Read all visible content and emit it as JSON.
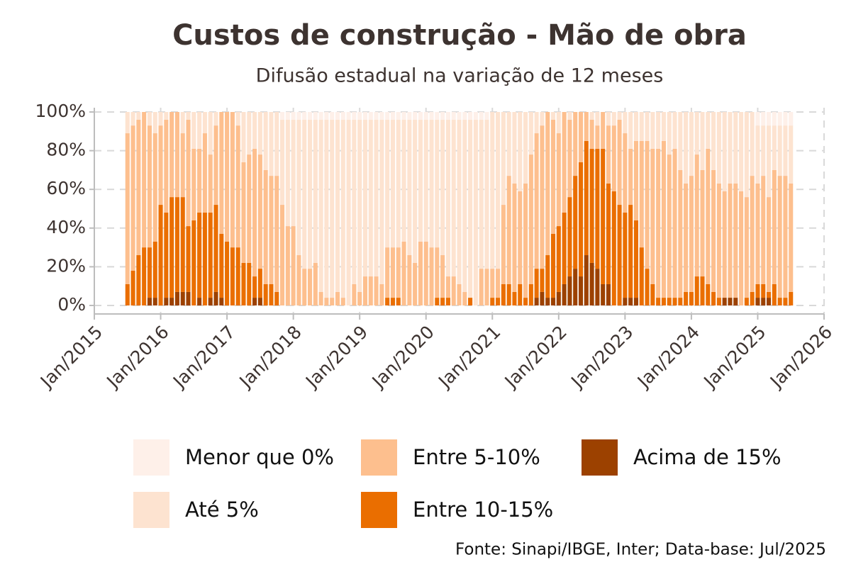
{
  "chart_data": {
    "type": "stacked-bar",
    "title": "Custos de construção - Mão de obra",
    "subtitle": "Difusão estadual na variação de 12 meses",
    "source": "Fonte: Sinapi/IBGE, Inter; Data-base: Jul/2025",
    "legend": "bottom",
    "grid": true,
    "xlim": [
      "2015-01",
      "2026-01"
    ],
    "xticks": [
      {
        "value": "2015-01",
        "label": "Jan/2015"
      },
      {
        "value": "2016-01",
        "label": "Jan/2016"
      },
      {
        "value": "2017-01",
        "label": "Jan/2017"
      },
      {
        "value": "2018-01",
        "label": "Jan/2018"
      },
      {
        "value": "2019-01",
        "label": "Jan/2019"
      },
      {
        "value": "2020-01",
        "label": "Jan/2020"
      },
      {
        "value": "2021-01",
        "label": "Jan/2021"
      },
      {
        "value": "2022-01",
        "label": "Jan/2022"
      },
      {
        "value": "2023-01",
        "label": "Jan/2023"
      },
      {
        "value": "2024-01",
        "label": "Jan/2024"
      },
      {
        "value": "2025-01",
        "label": "Jan/2025"
      },
      {
        "value": "2026-01",
        "label": "Jan/2026"
      }
    ],
    "ylim": [
      0,
      100
    ],
    "yticks": [
      {
        "value": 0,
        "label": "0%"
      },
      {
        "value": 20,
        "label": "20%"
      },
      {
        "value": 40,
        "label": "40%"
      },
      {
        "value": 60,
        "label": "60%"
      },
      {
        "value": 80,
        "label": "80%"
      },
      {
        "value": 100,
        "label": "100%"
      }
    ],
    "x": [
      "2015-07",
      "2015-08",
      "2015-09",
      "2015-10",
      "2015-11",
      "2015-12",
      "2016-01",
      "2016-02",
      "2016-03",
      "2016-04",
      "2016-05",
      "2016-06",
      "2016-07",
      "2016-08",
      "2016-09",
      "2016-10",
      "2016-11",
      "2016-12",
      "2017-01",
      "2017-02",
      "2017-03",
      "2017-04",
      "2017-05",
      "2017-06",
      "2017-07",
      "2017-08",
      "2017-09",
      "2017-10",
      "2017-11",
      "2017-12",
      "2018-01",
      "2018-02",
      "2018-03",
      "2018-04",
      "2018-05",
      "2018-06",
      "2018-07",
      "2018-08",
      "2018-09",
      "2018-10",
      "2018-11",
      "2018-12",
      "2019-01",
      "2019-02",
      "2019-03",
      "2019-04",
      "2019-05",
      "2019-06",
      "2019-07",
      "2019-08",
      "2019-09",
      "2019-10",
      "2019-11",
      "2019-12",
      "2020-01",
      "2020-02",
      "2020-03",
      "2020-04",
      "2020-05",
      "2020-06",
      "2020-07",
      "2020-08",
      "2020-09",
      "2020-10",
      "2020-11",
      "2020-12",
      "2021-01",
      "2021-02",
      "2021-03",
      "2021-04",
      "2021-05",
      "2021-06",
      "2021-07",
      "2021-08",
      "2021-09",
      "2021-10",
      "2021-11",
      "2021-12",
      "2022-01",
      "2022-02",
      "2022-03",
      "2022-04",
      "2022-05",
      "2022-06",
      "2022-07",
      "2022-08",
      "2022-09",
      "2022-10",
      "2022-11",
      "2022-12",
      "2023-01",
      "2023-02",
      "2023-03",
      "2023-04",
      "2023-05",
      "2023-06",
      "2023-07",
      "2023-08",
      "2023-09",
      "2023-10",
      "2023-11",
      "2023-12",
      "2024-01",
      "2024-02",
      "2024-03",
      "2024-04",
      "2024-05",
      "2024-06",
      "2024-07",
      "2024-08",
      "2024-09",
      "2024-10",
      "2024-11",
      "2024-12",
      "2025-01",
      "2025-02",
      "2025-03",
      "2025-04",
      "2025-05",
      "2025-06",
      "2025-07"
    ],
    "series": [
      {
        "name": "Menor que 0%",
        "color": "#fef0e9",
        "values": [
          0,
          0,
          0,
          0,
          0,
          0,
          0,
          0,
          0,
          0,
          0,
          0,
          0,
          0,
          0,
          0,
          0,
          0,
          0,
          0,
          0,
          0,
          0,
          0,
          0,
          0,
          0,
          0,
          4,
          4,
          4,
          4,
          4,
          4,
          4,
          4,
          4,
          4,
          4,
          4,
          4,
          4,
          4,
          4,
          4,
          4,
          4,
          4,
          4,
          4,
          4,
          4,
          4,
          4,
          4,
          4,
          4,
          4,
          4,
          4,
          4,
          4,
          4,
          4,
          4,
          4,
          0,
          0,
          0,
          0,
          0,
          0,
          0,
          0,
          0,
          0,
          0,
          0,
          0,
          0,
          0,
          0,
          0,
          0,
          0,
          0,
          0,
          0,
          0,
          0,
          0,
          0,
          0,
          0,
          0,
          0,
          0,
          0,
          0,
          0,
          0,
          0,
          0,
          0,
          0,
          0,
          0,
          0,
          0,
          0,
          0,
          0,
          0,
          0,
          7,
          7,
          7,
          7,
          7,
          7,
          7
        ]
      },
      {
        "name": "Até 5%",
        "color": "#fde3d0",
        "values": [
          11,
          7,
          4,
          0,
          7,
          11,
          7,
          4,
          0,
          0,
          11,
          4,
          19,
          19,
          11,
          22,
          7,
          0,
          0,
          0,
          7,
          26,
          22,
          19,
          22,
          30,
          33,
          33,
          44,
          55,
          55,
          70,
          77,
          77,
          74,
          89,
          92,
          92,
          89,
          92,
          96,
          85,
          89,
          81,
          81,
          81,
          85,
          66,
          66,
          66,
          63,
          70,
          74,
          63,
          63,
          66,
          66,
          70,
          81,
          81,
          85,
          89,
          92,
          96,
          77,
          77,
          81,
          81,
          48,
          33,
          37,
          41,
          37,
          22,
          11,
          7,
          0,
          4,
          11,
          0,
          4,
          0,
          0,
          0,
          4,
          7,
          0,
          7,
          7,
          4,
          11,
          19,
          15,
          15,
          15,
          19,
          19,
          15,
          22,
          19,
          30,
          37,
          33,
          22,
          30,
          19,
          30,
          37,
          41,
          37,
          37,
          41,
          44,
          33,
          30,
          26,
          37,
          23,
          26,
          26,
          30
        ]
      },
      {
        "name": "Entre 5-10%",
        "color": "#fdbf8e",
        "values": [
          78,
          75,
          70,
          70,
          63,
          56,
          41,
          48,
          44,
          44,
          33,
          55,
          37,
          33,
          41,
          30,
          41,
          63,
          67,
          70,
          63,
          52,
          56,
          66,
          59,
          59,
          56,
          60,
          52,
          41,
          41,
          26,
          19,
          19,
          22,
          7,
          4,
          4,
          7,
          4,
          0,
          11,
          7,
          15,
          15,
          15,
          11,
          26,
          26,
          26,
          33,
          26,
          22,
          33,
          33,
          30,
          26,
          22,
          11,
          15,
          11,
          7,
          0,
          0,
          19,
          19,
          15,
          15,
          41,
          56,
          56,
          48,
          59,
          67,
          70,
          74,
          74,
          59,
          48,
          52,
          40,
          33,
          26,
          15,
          15,
          12,
          19,
          30,
          34,
          44,
          41,
          29,
          41,
          55,
          66,
          70,
          77,
          81,
          74,
          77,
          66,
          56,
          60,
          63,
          55,
          70,
          63,
          59,
          55,
          59,
          59,
          59,
          52,
          60,
          52,
          56,
          49,
          59,
          63,
          63,
          56
        ]
      },
      {
        "name": "Entre 10-15%",
        "color": "#ea6e00",
        "values": [
          11,
          18,
          26,
          30,
          26,
          29,
          52,
          44,
          52,
          49,
          49,
          34,
          44,
          44,
          48,
          44,
          45,
          33,
          33,
          30,
          30,
          22,
          22,
          11,
          15,
          11,
          11,
          7,
          0,
          0,
          0,
          0,
          0,
          0,
          0,
          0,
          0,
          0,
          0,
          0,
          0,
          0,
          0,
          0,
          0,
          0,
          0,
          4,
          4,
          4,
          0,
          0,
          0,
          0,
          0,
          0,
          4,
          4,
          4,
          0,
          0,
          0,
          4,
          0,
          0,
          0,
          4,
          4,
          11,
          11,
          7,
          11,
          4,
          11,
          15,
          12,
          22,
          33,
          34,
          37,
          41,
          48,
          59,
          59,
          59,
          62,
          70,
          52,
          59,
          52,
          44,
          48,
          40,
          30,
          19,
          11,
          4,
          4,
          4,
          4,
          4,
          7,
          7,
          15,
          15,
          11,
          7,
          4,
          0,
          0,
          0,
          0,
          4,
          7,
          7,
          7,
          3,
          11,
          4,
          4,
          7
        ]
      },
      {
        "name": "Acima de 15%",
        "color": "#9c4100",
        "values": [
          0,
          0,
          0,
          0,
          4,
          4,
          0,
          4,
          4,
          7,
          7,
          7,
          0,
          4,
          0,
          4,
          7,
          4,
          0,
          0,
          0,
          0,
          0,
          4,
          4,
          0,
          0,
          0,
          0,
          0,
          0,
          0,
          0,
          0,
          0,
          0,
          0,
          0,
          0,
          0,
          0,
          0,
          0,
          0,
          0,
          0,
          0,
          0,
          0,
          0,
          0,
          0,
          0,
          0,
          0,
          0,
          0,
          0,
          0,
          0,
          0,
          0,
          0,
          0,
          0,
          0,
          0,
          0,
          0,
          0,
          0,
          0,
          0,
          0,
          4,
          7,
          4,
          4,
          7,
          11,
          15,
          19,
          15,
          26,
          22,
          19,
          11,
          11,
          0,
          0,
          4,
          4,
          4,
          0,
          0,
          0,
          0,
          0,
          0,
          0,
          0,
          0,
          0,
          0,
          0,
          0,
          0,
          0,
          4,
          4,
          4,
          0,
          0,
          0,
          4,
          4,
          4,
          0,
          0,
          0,
          0
        ]
      }
    ]
  }
}
